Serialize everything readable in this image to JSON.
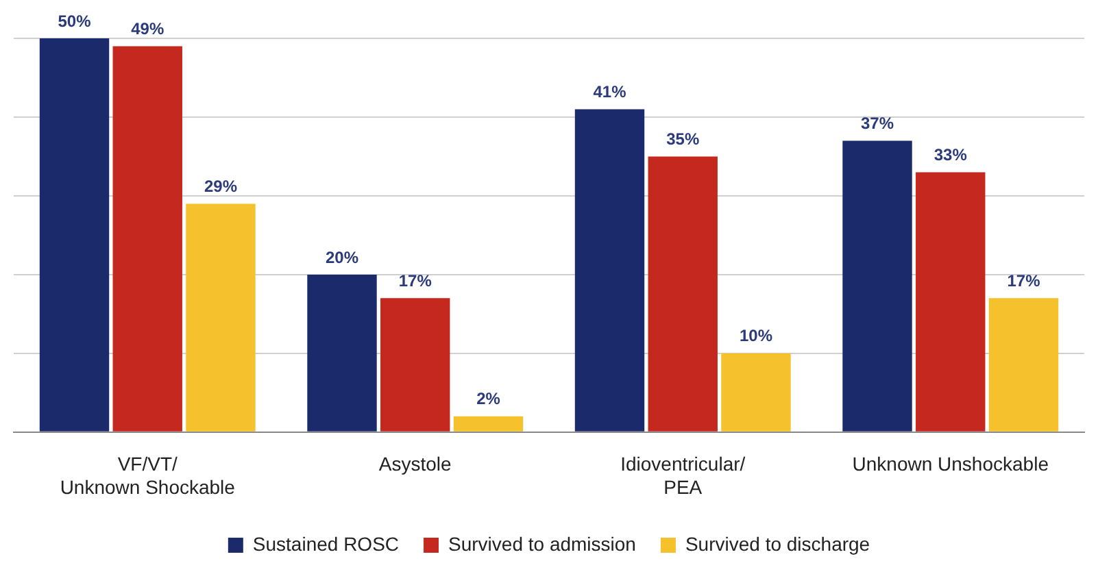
{
  "chart_data": {
    "type": "bar",
    "categories": [
      "VF/VT/\nUnknown Shockable",
      "Asystole",
      "Idioventricular/\nPEA",
      "Unknown Unshockable"
    ],
    "series": [
      {
        "name": "Sustained ROSC",
        "color": "#1b2a6b",
        "values": [
          50,
          20,
          41,
          37
        ],
        "value_labels": [
          "50%",
          "20%",
          "41%",
          "37%"
        ]
      },
      {
        "name": "Survived to admission",
        "color": "#c4281e",
        "values": [
          49,
          17,
          35,
          33
        ],
        "value_labels": [
          "49%",
          "17%",
          "35%",
          "33%"
        ]
      },
      {
        "name": "Survived to discharge",
        "color": "#f5c12c",
        "values": [
          29,
          2,
          10,
          17
        ],
        "value_labels": [
          "29%",
          "2%",
          "10%",
          "17%"
        ]
      }
    ],
    "ylim": [
      0,
      50
    ],
    "yticks": [
      {
        "value": 0,
        "label": null
      },
      {
        "value": 10,
        "label": null
      },
      {
        "value": 20,
        "label": null
      },
      {
        "value": 30,
        "label": null
      },
      {
        "value": 40,
        "label": null
      },
      {
        "value": 50,
        "label": null
      }
    ],
    "grid": "y",
    "tick_labels": "x",
    "legend": "bottom"
  }
}
